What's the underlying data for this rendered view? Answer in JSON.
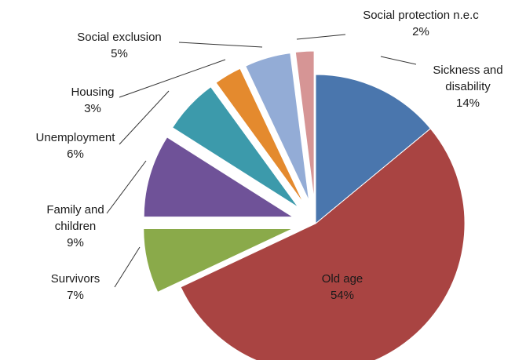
{
  "chart_data": {
    "type": "pie",
    "title": "",
    "slices": [
      {
        "label": "Sickness and disability",
        "label_lines": [
          "Sickness and",
          "disability"
        ],
        "pct_text": "14%",
        "value": 14,
        "color": "#4a76ad",
        "explode": 0
      },
      {
        "label": "Old age",
        "label_lines": [
          "Old age"
        ],
        "pct_text": "54%",
        "value": 54,
        "color": "#a94442",
        "explode": 0
      },
      {
        "label": "Survivors",
        "label_lines": [
          "Survivors"
        ],
        "pct_text": "7%",
        "value": 7,
        "color": "#8aaa4a",
        "explode": 1
      },
      {
        "label": "Family and children",
        "label_lines": [
          "Family and",
          "children"
        ],
        "pct_text": "9%",
        "value": 9,
        "color": "#6f5298",
        "explode": 1
      },
      {
        "label": "Unemployment",
        "label_lines": [
          "Unemployment"
        ],
        "pct_text": "6%",
        "value": 6,
        "color": "#3c9aab",
        "explode": 1
      },
      {
        "label": "Housing",
        "label_lines": [
          "Housing"
        ],
        "pct_text": "3%",
        "value": 3,
        "color": "#e48a2e",
        "explode": 1
      },
      {
        "label": "Social exclusion",
        "label_lines": [
          "Social exclusion"
        ],
        "pct_text": "5%",
        "value": 5,
        "color": "#93acd6",
        "explode": 1
      },
      {
        "label": "Social protection n.e.c",
        "label_lines": [
          "Social protection n.e.c"
        ],
        "pct_text": "2%",
        "value": 2,
        "color": "#d69595",
        "explode": 1
      }
    ]
  }
}
